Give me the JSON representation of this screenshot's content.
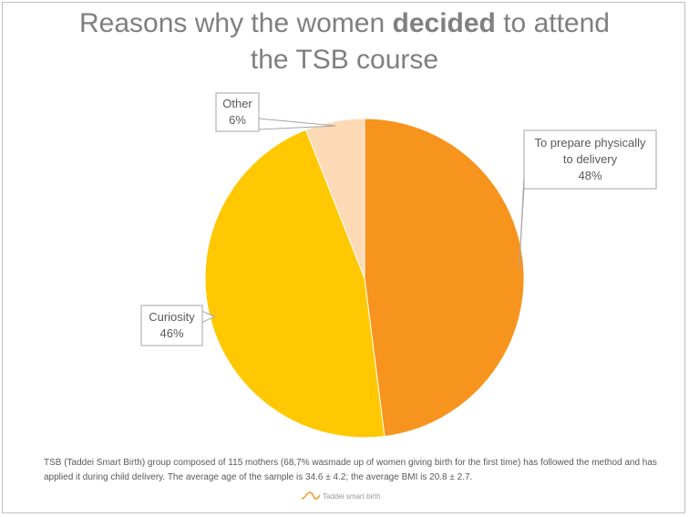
{
  "title": {
    "before": "Reasons why the women ",
    "emphasis": "decided",
    "after": " to attend",
    "line2": "the TSB course"
  },
  "chart_data": {
    "type": "pie",
    "title": "Reasons why the women decided to attend the TSB course",
    "slices": [
      {
        "label": "To prepare physically to delivery",
        "value": 48,
        "display": "48%",
        "color": "#f7941d"
      },
      {
        "label": "Curiosity",
        "value": 46,
        "display": "46%",
        "color": "#ffc800"
      },
      {
        "label": "Other",
        "value": 6,
        "display": "6%",
        "color": "#fdd9b5"
      }
    ],
    "labels_lines": [
      [
        "To prepare physically",
        "to delivery",
        "48%"
      ],
      [
        "Curiosity",
        "46%"
      ],
      [
        "Other",
        "6%"
      ]
    ],
    "start_angle": "12 o'clock",
    "direction": "clockwise"
  },
  "footnote": "TSB (Taddei Smart Birth) group composed of 115 mothers (68,7% wasmade up of women giving birth for the first time) has followed the method and has applied it during child delivery. The average age of the sample is 34.6 ± 4.2; the average BMI is 20.8 ± 2.7.",
  "logo_text": "Taddei smart birth"
}
